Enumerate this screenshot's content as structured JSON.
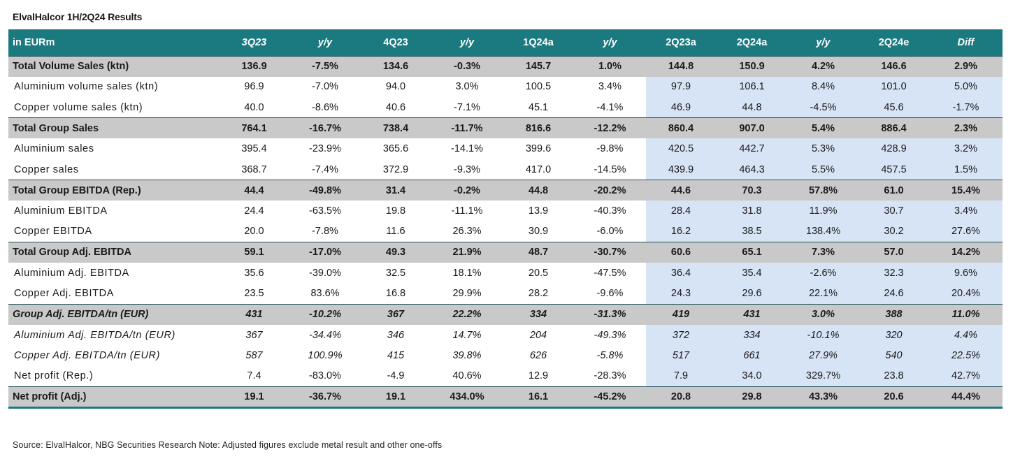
{
  "title": "ElvalHalcor 1H/2Q24 Results",
  "header": [
    "in EURm",
    "3Q23",
    "y/y",
    "4Q23",
    "y/y",
    "1Q24a",
    "y/y",
    "2Q23a",
    "2Q24a",
    "y/y",
    "2Q24e",
    "Diff"
  ],
  "rows": [
    {
      "label": "Total Volume Sales (ktn)",
      "style": "bold",
      "values": [
        "136.9",
        "-7.5%",
        "134.6",
        "-0.3%",
        "145.7",
        "1.0%",
        "144.8",
        "150.9",
        "4.2%",
        "146.6",
        "2.9%"
      ]
    },
    {
      "label": "Aluminium volume sales (ktn)",
      "style": "sub",
      "values": [
        "96.9",
        "-7.0%",
        "94.0",
        "3.0%",
        "100.5",
        "3.4%",
        "97.9",
        "106.1",
        "8.4%",
        "101.0",
        "5.0%"
      ]
    },
    {
      "label": "Copper volume sales (ktn)",
      "style": "sub",
      "values": [
        "40.0",
        "-8.6%",
        "40.6",
        "-7.1%",
        "45.1",
        "-4.1%",
        "46.9",
        "44.8",
        "-4.5%",
        "45.6",
        "-1.7%"
      ]
    },
    {
      "label": "Total Group Sales",
      "style": "bold",
      "values": [
        "764.1",
        "-16.7%",
        "738.4",
        "-11.7%",
        "816.6",
        "-12.2%",
        "860.4",
        "907.0",
        "5.4%",
        "886.4",
        "2.3%"
      ]
    },
    {
      "label": "Aluminium sales",
      "style": "sub",
      "values": [
        "395.4",
        "-23.9%",
        "365.6",
        "-14.1%",
        "399.6",
        "-9.8%",
        "420.5",
        "442.7",
        "5.3%",
        "428.9",
        "3.2%"
      ]
    },
    {
      "label": "Copper sales",
      "style": "sub",
      "values": [
        "368.7",
        "-7.4%",
        "372.9",
        "-9.3%",
        "417.0",
        "-14.5%",
        "439.9",
        "464.3",
        "5.5%",
        "457.5",
        "1.5%"
      ]
    },
    {
      "label": "Total Group EBITDA (Rep.)",
      "style": "bold",
      "values": [
        "44.4",
        "-49.8%",
        "31.4",
        "-0.2%",
        "44.8",
        "-20.2%",
        "44.6",
        "70.3",
        "57.8%",
        "61.0",
        "15.4%"
      ]
    },
    {
      "label": "Aluminium EBITDA",
      "style": "sub",
      "values": [
        "24.4",
        "-63.5%",
        "19.8",
        "-11.1%",
        "13.9",
        "-40.3%",
        "28.4",
        "31.8",
        "11.9%",
        "30.7",
        "3.4%"
      ]
    },
    {
      "label": "Copper EBITDA",
      "style": "sub",
      "values": [
        "20.0",
        "-7.8%",
        "11.6",
        "26.3%",
        "30.9",
        "-6.0%",
        "16.2",
        "38.5",
        "138.4%",
        "30.2",
        "27.6%"
      ]
    },
    {
      "label": "Total Group Adj. EBITDA",
      "style": "bold",
      "values": [
        "59.1",
        "-17.0%",
        "49.3",
        "21.9%",
        "48.7",
        "-30.7%",
        "60.6",
        "65.1",
        "7.3%",
        "57.0",
        "14.2%"
      ]
    },
    {
      "label": "Aluminium Adj. EBITDA",
      "style": "sub",
      "values": [
        "35.6",
        "-39.0%",
        "32.5",
        "18.1%",
        "20.5",
        "-47.5%",
        "36.4",
        "35.4",
        "-2.6%",
        "32.3",
        "9.6%"
      ]
    },
    {
      "label": "Copper Adj. EBITDA",
      "style": "sub",
      "values": [
        "23.5",
        "83.6%",
        "16.8",
        "29.9%",
        "28.2",
        "-9.6%",
        "24.3",
        "29.6",
        "22.1%",
        "24.6",
        "20.4%"
      ]
    },
    {
      "label": "Group Adj. EBITDA/tn (EUR)",
      "style": "bold italic",
      "values": [
        "431",
        "-10.2%",
        "367",
        "22.2%",
        "334",
        "-31.3%",
        "419",
        "431",
        "3.0%",
        "388",
        "11.0%"
      ]
    },
    {
      "label": "Aluminium Adj. EBITDA/tn (EUR)",
      "style": "sub italic",
      "values": [
        "367",
        "-34.4%",
        "346",
        "14.7%",
        "204",
        "-49.3%",
        "372",
        "334",
        "-10.1%",
        "320",
        "4.4%"
      ]
    },
    {
      "label": "Copper Adj. EBITDA/tn (EUR)",
      "style": "sub italic",
      "values": [
        "587",
        "100.9%",
        "415",
        "39.8%",
        "626",
        "-5.8%",
        "517",
        "661",
        "27.9%",
        "540",
        "22.5%"
      ]
    },
    {
      "label": "Net profit (Rep.)",
      "style": "sub",
      "values": [
        "7.4",
        "-83.0%",
        "-4.9",
        "40.6%",
        "12.9",
        "-28.3%",
        "7.9",
        "34.0",
        "329.7%",
        "23.8",
        "42.7%"
      ]
    },
    {
      "label": "Net profit (Adj.)",
      "style": "bold last",
      "values": [
        "19.1",
        "-36.7%",
        "19.1",
        "434.0%",
        "16.1",
        "-45.2%",
        "20.8",
        "29.8",
        "43.3%",
        "20.6",
        "44.4%"
      ]
    }
  ],
  "source": "Source: ElvalHalcor, NBG Securities Research    Note: Adjusted figures exclude metal result and other one-offs",
  "colors": {
    "header_bg": "#1b7a80",
    "bold_row_bg": "#c9c9c9",
    "highlight_bg": "#d7e4f5"
  }
}
